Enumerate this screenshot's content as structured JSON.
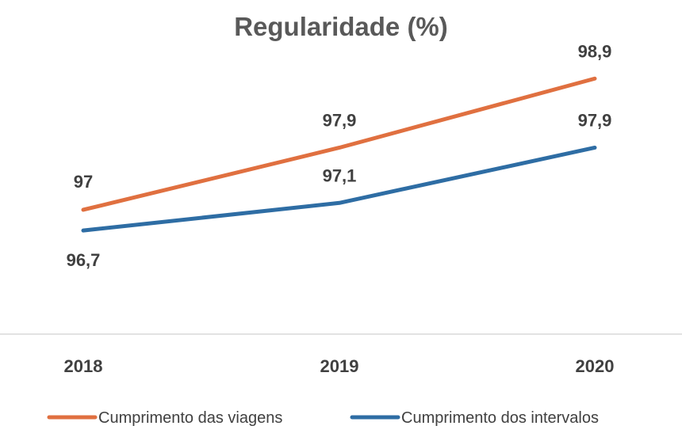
{
  "chart_data": {
    "type": "line",
    "title": "Regularidade (%)",
    "xlabel": "",
    "ylabel": "",
    "categories": [
      "2018",
      "2019",
      "2020"
    ],
    "series": [
      {
        "name": "Cumprimento das viagens",
        "values": [
          97,
          97.9,
          98.9
        ],
        "labels": [
          "97",
          "97,9",
          "98,9"
        ],
        "color": "#E07040"
      },
      {
        "name": "Cumprimento dos intervalos",
        "values": [
          96.7,
          97.1,
          97.9
        ],
        "labels": [
          "96,7",
          "97,1",
          "97,9"
        ],
        "color": "#2E6DA4"
      }
    ],
    "ylim": [
      95.2,
      99.35
    ],
    "grid": false,
    "legend": "bottom"
  }
}
